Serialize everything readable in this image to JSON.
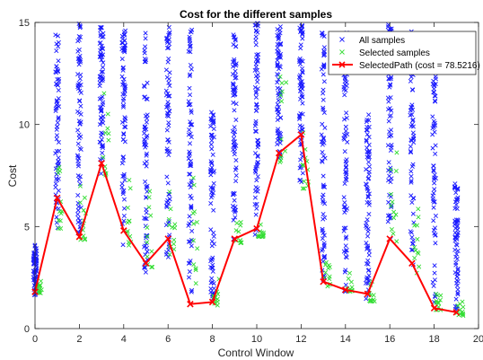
{
  "chart_data": {
    "type": "scatter",
    "title": "Cost for the different samples",
    "xlabel": "Control Window",
    "ylabel": "Cost",
    "xlim": [
      0,
      20
    ],
    "ylim": [
      0,
      15
    ],
    "x_ticks": [
      "0",
      "2",
      "4",
      "6",
      "8",
      "10",
      "12",
      "14",
      "16",
      "18",
      "20"
    ],
    "y_ticks": [
      "0",
      "5",
      "10",
      "15"
    ],
    "grid": false,
    "legend_position": "top-right",
    "colors": {
      "all": "#1a1aff",
      "selected": "#33dd33",
      "path": "#ff0000"
    },
    "all_samples_ranges": [
      {
        "x": 0,
        "ymin": 1.6,
        "ymax": 4.1
      },
      {
        "x": 1,
        "ymin": 4.5,
        "ymax": 14.6
      },
      {
        "x": 2,
        "ymin": 4.4,
        "ymax": 15.0
      },
      {
        "x": 3,
        "ymin": 7.5,
        "ymax": 15.0
      },
      {
        "x": 4,
        "ymin": 3.9,
        "ymax": 14.7
      },
      {
        "x": 5,
        "ymin": 2.7,
        "ymax": 14.7
      },
      {
        "x": 6,
        "ymin": 3.3,
        "ymax": 14.8
      },
      {
        "x": 7,
        "ymin": 1.1,
        "ymax": 15.0
      },
      {
        "x": 8,
        "ymin": 1.1,
        "ymax": 10.9
      },
      {
        "x": 9,
        "ymin": 4.1,
        "ymax": 14.4
      },
      {
        "x": 10,
        "ymin": 4.5,
        "ymax": 15.0
      },
      {
        "x": 11,
        "ymin": 8.0,
        "ymax": 15.0
      },
      {
        "x": 12,
        "ymin": 7.0,
        "ymax": 15.0
      },
      {
        "x": 13,
        "ymin": 2.0,
        "ymax": 14.6
      },
      {
        "x": 14,
        "ymin": 1.8,
        "ymax": 14.7
      },
      {
        "x": 15,
        "ymin": 1.4,
        "ymax": 10.6
      },
      {
        "x": 16,
        "ymin": 4.2,
        "ymax": 15.0
      },
      {
        "x": 17,
        "ymin": 2.6,
        "ymax": 14.6
      },
      {
        "x": 18,
        "ymin": 0.9,
        "ymax": 13.5
      },
      {
        "x": 19,
        "ymin": 0.7,
        "ymax": 7.1
      }
    ],
    "selected_samples_ranges": [
      {
        "x": 0,
        "ymin": 1.7,
        "ymax": 2.6
      },
      {
        "x": 1,
        "ymin": 4.9,
        "ymax": 8.0
      },
      {
        "x": 2,
        "ymin": 4.3,
        "ymax": 8.7
      },
      {
        "x": 3,
        "ymin": 7.5,
        "ymax": 11.7
      },
      {
        "x": 4,
        "ymin": 4.0,
        "ymax": 7.6
      },
      {
        "x": 5,
        "ymin": 2.8,
        "ymax": 6.9
      },
      {
        "x": 6,
        "ymin": 3.3,
        "ymax": 8.0
      },
      {
        "x": 7,
        "ymin": 1.1,
        "ymax": 7.6
      },
      {
        "x": 8,
        "ymin": 1.1,
        "ymax": 2.6
      },
      {
        "x": 9,
        "ymin": 4.2,
        "ymax": 5.3
      },
      {
        "x": 10,
        "ymin": 4.5,
        "ymax": 5.2
      },
      {
        "x": 11,
        "ymin": 8.1,
        "ymax": 13.1
      },
      {
        "x": 12,
        "ymin": 6.8,
        "ymax": 9.7
      },
      {
        "x": 13,
        "ymin": 2.0,
        "ymax": 3.3
      },
      {
        "x": 14,
        "ymin": 1.8,
        "ymax": 2.9
      },
      {
        "x": 15,
        "ymin": 1.3,
        "ymax": 2.4
      },
      {
        "x": 16,
        "ymin": 4.2,
        "ymax": 12.2
      },
      {
        "x": 17,
        "ymin": 2.7,
        "ymax": 7.3
      },
      {
        "x": 18,
        "ymin": 0.9,
        "ymax": 1.7
      },
      {
        "x": 19,
        "ymin": 0.6,
        "ymax": 1.5
      }
    ],
    "series": [
      {
        "name": "SelectedPath (cost = 78.5216)",
        "x": [
          0,
          1,
          2,
          3,
          4,
          5,
          6,
          7,
          8,
          9,
          10,
          11,
          12,
          13,
          14,
          15,
          16,
          17,
          18,
          19
        ],
        "values": [
          1.8,
          6.4,
          4.5,
          8.1,
          4.8,
          3.2,
          4.4,
          1.2,
          1.3,
          4.4,
          4.9,
          8.6,
          9.5,
          2.3,
          1.9,
          1.7,
          4.4,
          3.2,
          1.0,
          0.8
        ]
      }
    ],
    "legend": [
      "All samples",
      "Selected samples",
      "SelectedPath (cost = 78.5216)"
    ]
  }
}
